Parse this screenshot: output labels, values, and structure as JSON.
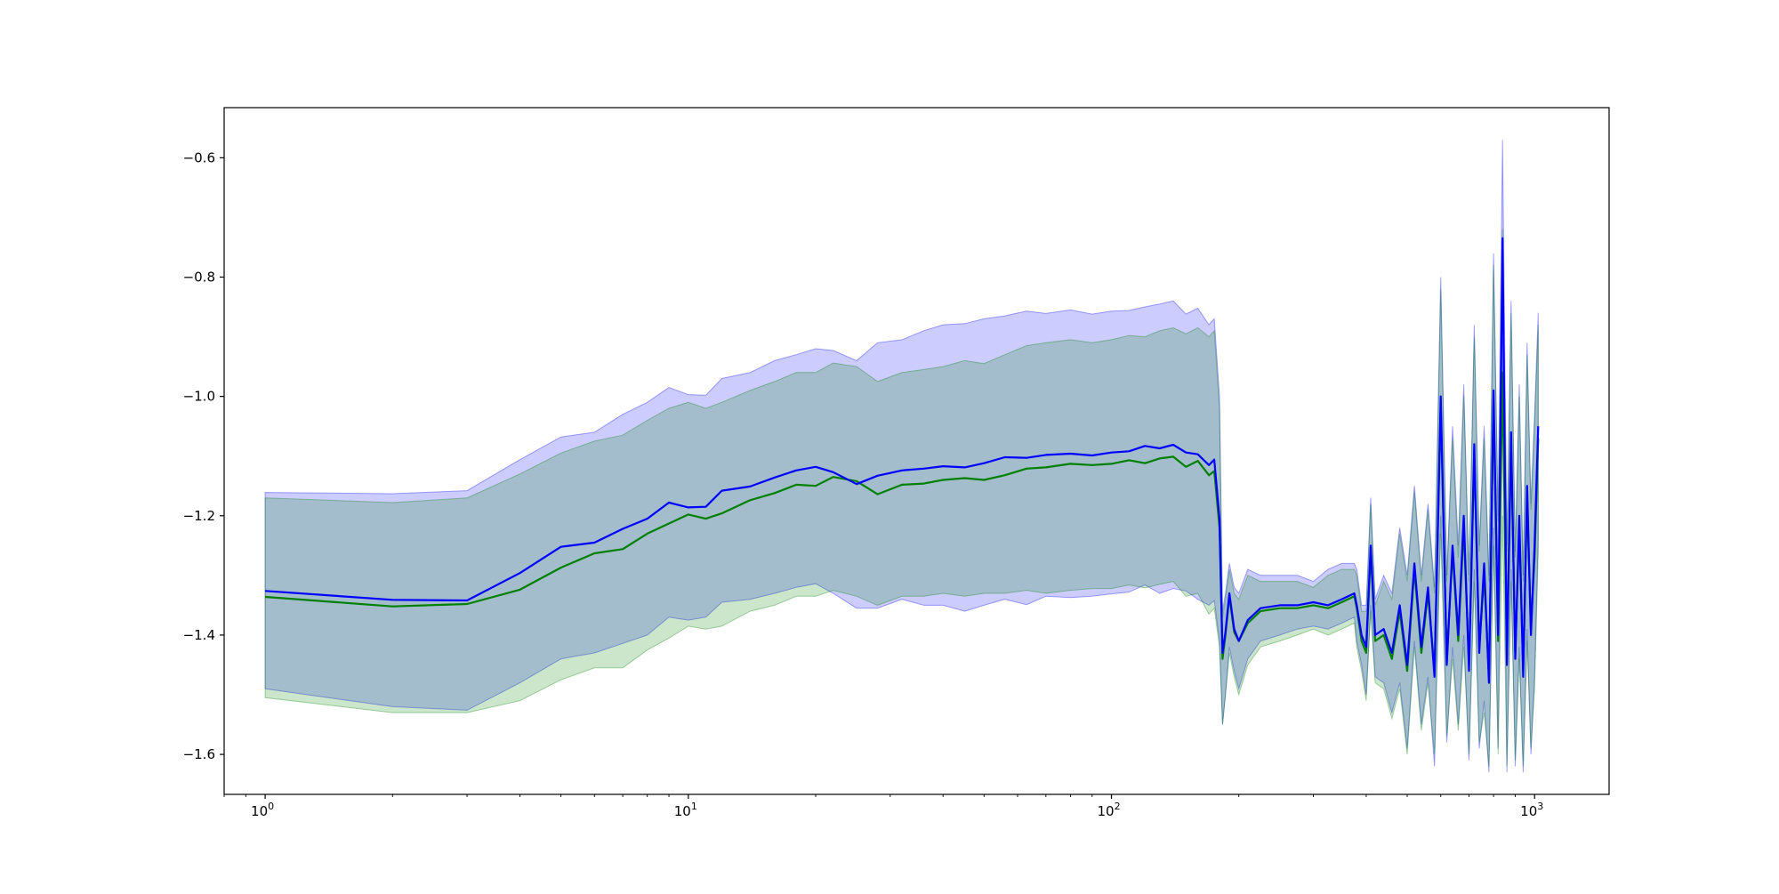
{
  "chart_data": {
    "type": "line",
    "title": "",
    "xlabel": "",
    "ylabel": "",
    "xscale": "log",
    "xlim": [
      0.8,
      1500
    ],
    "ylim": [
      -1.667,
      -0.516
    ],
    "grid": false,
    "legend": "none",
    "x_ticks": [
      {
        "value": 1,
        "base": "10",
        "exp": "0"
      },
      {
        "value": 10,
        "base": "10",
        "exp": "1"
      },
      {
        "value": 100,
        "base": "10",
        "exp": "2"
      },
      {
        "value": 1000,
        "base": "10",
        "exp": "3"
      }
    ],
    "y_ticks": [
      {
        "value": -0.6,
        "label": "−0.6"
      },
      {
        "value": -0.8,
        "label": "−0.8"
      },
      {
        "value": -1.0,
        "label": "−1.0"
      },
      {
        "value": -1.2,
        "label": "−1.2"
      },
      {
        "value": -1.4,
        "label": "−1.4"
      },
      {
        "value": -1.6,
        "label": "−1.6"
      }
    ],
    "series": [
      {
        "color": "#0000ff",
        "band_color": "#0000ff",
        "band_opacity": 0.2,
        "x": [
          1,
          2,
          3,
          4,
          5,
          6,
          7,
          8,
          9,
          10,
          11,
          12,
          14,
          16,
          18,
          20,
          22,
          25,
          28,
          32,
          36,
          40,
          45,
          50,
          56,
          63,
          70,
          80,
          90,
          100,
          110,
          120,
          130,
          140,
          150,
          160,
          170,
          175,
          180,
          183,
          186,
          190,
          195,
          200,
          210,
          225,
          250,
          275,
          300,
          325,
          350,
          375,
          380,
          390,
          400,
          410,
          420,
          440,
          460,
          480,
          500,
          520,
          540,
          560,
          580,
          600,
          620,
          640,
          660,
          680,
          700,
          720,
          740,
          760,
          780,
          800,
          820,
          840,
          860,
          880,
          900,
          920,
          940,
          960,
          980,
          1000,
          1020
        ],
        "mean": [
          -1.326,
          -1.341,
          -1.342,
          -1.296,
          -1.252,
          -1.245,
          -1.222,
          -1.205,
          -1.178,
          -1.186,
          -1.185,
          -1.158,
          -1.151,
          -1.136,
          -1.124,
          -1.118,
          -1.127,
          -1.147,
          -1.133,
          -1.124,
          -1.121,
          -1.117,
          -1.119,
          -1.112,
          -1.102,
          -1.103,
          -1.098,
          -1.096,
          -1.099,
          -1.094,
          -1.092,
          -1.083,
          -1.087,
          -1.081,
          -1.094,
          -1.097,
          -1.115,
          -1.106,
          -1.205,
          -1.43,
          -1.395,
          -1.33,
          -1.39,
          -1.41,
          -1.375,
          -1.355,
          -1.35,
          -1.35,
          -1.345,
          -1.35,
          -1.34,
          -1.33,
          -1.35,
          -1.4,
          -1.42,
          -1.25,
          -1.4,
          -1.39,
          -1.43,
          -1.35,
          -1.45,
          -1.28,
          -1.42,
          -1.32,
          -1.47,
          -1.0,
          -1.45,
          -1.25,
          -1.4,
          -1.2,
          -1.46,
          -1.08,
          -1.43,
          -1.28,
          -1.48,
          -0.99,
          -1.4,
          -0.735,
          -1.45,
          -1.06,
          -1.44,
          -1.2,
          -1.47,
          -1.15,
          -1.4,
          -1.25,
          -1.05
        ],
        "upper": [
          -1.161,
          -1.163,
          -1.158,
          -1.106,
          -1.068,
          -1.06,
          -1.03,
          -1.01,
          -0.985,
          -0.997,
          -0.998,
          -0.97,
          -0.96,
          -0.94,
          -0.93,
          -0.92,
          -0.923,
          -0.94,
          -0.91,
          -0.905,
          -0.89,
          -0.88,
          -0.878,
          -0.87,
          -0.865,
          -0.857,
          -0.861,
          -0.855,
          -0.862,
          -0.857,
          -0.856,
          -0.85,
          -0.845,
          -0.84,
          -0.862,
          -0.852,
          -0.88,
          -0.87,
          -1.0,
          -1.36,
          -1.33,
          -1.28,
          -1.32,
          -1.33,
          -1.29,
          -1.3,
          -1.3,
          -1.3,
          -1.31,
          -1.29,
          -1.28,
          -1.28,
          -1.29,
          -1.35,
          -1.35,
          -1.17,
          -1.34,
          -1.3,
          -1.33,
          -1.22,
          -1.3,
          -1.15,
          -1.3,
          -1.18,
          -1.32,
          -0.8,
          -1.3,
          -1.05,
          -1.25,
          -0.98,
          -1.3,
          -0.88,
          -1.25,
          -1.05,
          -1.3,
          -0.76,
          -1.2,
          -0.57,
          -1.25,
          -0.84,
          -1.26,
          -0.98,
          -1.3,
          -0.91,
          -1.18,
          -1.03,
          -0.86
        ],
        "lower": [
          -1.49,
          -1.52,
          -1.526,
          -1.48,
          -1.44,
          -1.43,
          -1.414,
          -1.4,
          -1.37,
          -1.375,
          -1.37,
          -1.345,
          -1.34,
          -1.33,
          -1.32,
          -1.314,
          -1.33,
          -1.355,
          -1.355,
          -1.34,
          -1.35,
          -1.35,
          -1.36,
          -1.35,
          -1.34,
          -1.349,
          -1.335,
          -1.337,
          -1.335,
          -1.331,
          -1.328,
          -1.316,
          -1.33,
          -1.322,
          -1.326,
          -1.34,
          -1.35,
          -1.342,
          -1.41,
          -1.55,
          -1.5,
          -1.42,
          -1.46,
          -1.49,
          -1.44,
          -1.41,
          -1.4,
          -1.39,
          -1.385,
          -1.39,
          -1.38,
          -1.37,
          -1.41,
          -1.45,
          -1.5,
          -1.35,
          -1.47,
          -1.48,
          -1.53,
          -1.48,
          -1.59,
          -1.41,
          -1.55,
          -1.47,
          -1.62,
          -1.2,
          -1.58,
          -1.42,
          -1.55,
          -1.4,
          -1.61,
          -1.29,
          -1.59,
          -1.51,
          -1.63,
          -1.22,
          -1.59,
          -0.9,
          -1.63,
          -1.29,
          -1.62,
          -1.42,
          -1.63,
          -1.39,
          -1.6,
          -1.47,
          -1.24
        ]
      },
      {
        "color": "#008000",
        "band_color": "#008000",
        "band_opacity": 0.2,
        "x": [
          1,
          2,
          3,
          4,
          5,
          6,
          7,
          8,
          9,
          10,
          11,
          12,
          14,
          16,
          18,
          20,
          22,
          25,
          28,
          32,
          36,
          40,
          45,
          50,
          56,
          63,
          70,
          80,
          90,
          100,
          110,
          120,
          130,
          140,
          150,
          160,
          170,
          175,
          180,
          183,
          186,
          190,
          195,
          200,
          210,
          225,
          250,
          275,
          300,
          325,
          350,
          375,
          380,
          390,
          400,
          410,
          420,
          440,
          460,
          480,
          500,
          520,
          540,
          560,
          580,
          600,
          620,
          640,
          660,
          680,
          700,
          720,
          740,
          760,
          780,
          800,
          820,
          840,
          860,
          880,
          900,
          920,
          940,
          960,
          980,
          1000,
          1020
        ],
        "mean": [
          -1.336,
          -1.352,
          -1.348,
          -1.324,
          -1.287,
          -1.263,
          -1.256,
          -1.23,
          -1.213,
          -1.198,
          -1.205,
          -1.196,
          -1.174,
          -1.162,
          -1.148,
          -1.15,
          -1.135,
          -1.142,
          -1.164,
          -1.148,
          -1.146,
          -1.14,
          -1.137,
          -1.14,
          -1.132,
          -1.121,
          -1.119,
          -1.113,
          -1.115,
          -1.113,
          -1.107,
          -1.112,
          -1.104,
          -1.101,
          -1.118,
          -1.108,
          -1.132,
          -1.125,
          -1.22,
          -1.44,
          -1.4,
          -1.335,
          -1.395,
          -1.41,
          -1.38,
          -1.36,
          -1.355,
          -1.355,
          -1.35,
          -1.355,
          -1.345,
          -1.335,
          -1.355,
          -1.41,
          -1.43,
          -1.26,
          -1.41,
          -1.4,
          -1.44,
          -1.36,
          -1.46,
          -1.29,
          -1.43,
          -1.33,
          -1.46,
          -1.02,
          -1.44,
          -1.26,
          -1.41,
          -1.22,
          -1.45,
          -1.1,
          -1.42,
          -1.3,
          -1.47,
          -1.01,
          -1.41,
          -0.96,
          -1.44,
          -1.08,
          -1.43,
          -1.22,
          -1.46,
          -1.17,
          -1.39,
          -1.27,
          -1.07
        ],
        "upper": [
          -1.17,
          -1.178,
          -1.17,
          -1.13,
          -1.095,
          -1.075,
          -1.065,
          -1.04,
          -1.02,
          -1.01,
          -1.02,
          -1.01,
          -0.99,
          -0.975,
          -0.96,
          -0.96,
          -0.944,
          -0.95,
          -0.975,
          -0.96,
          -0.955,
          -0.95,
          -0.94,
          -0.945,
          -0.93,
          -0.915,
          -0.91,
          -0.905,
          -0.91,
          -0.905,
          -0.898,
          -0.9,
          -0.89,
          -0.885,
          -0.895,
          -0.885,
          -0.9,
          -0.89,
          -1.02,
          -1.37,
          -1.34,
          -1.29,
          -1.33,
          -1.34,
          -1.3,
          -1.31,
          -1.31,
          -1.31,
          -1.32,
          -1.3,
          -1.29,
          -1.29,
          -1.3,
          -1.36,
          -1.36,
          -1.18,
          -1.35,
          -1.31,
          -1.34,
          -1.23,
          -1.31,
          -1.16,
          -1.31,
          -1.19,
          -1.33,
          -0.82,
          -1.31,
          -1.07,
          -1.27,
          -1.0,
          -1.31,
          -0.9,
          -1.26,
          -1.07,
          -1.31,
          -0.78,
          -1.21,
          -0.72,
          -1.26,
          -0.86,
          -1.27,
          -1.0,
          -1.31,
          -0.93,
          -1.19,
          -1.05,
          -0.88
        ],
        "lower": [
          -1.505,
          -1.53,
          -1.53,
          -1.51,
          -1.475,
          -1.455,
          -1.455,
          -1.425,
          -1.405,
          -1.385,
          -1.39,
          -1.385,
          -1.36,
          -1.35,
          -1.335,
          -1.335,
          -1.325,
          -1.335,
          -1.35,
          -1.335,
          -1.335,
          -1.33,
          -1.335,
          -1.33,
          -1.33,
          -1.325,
          -1.33,
          -1.325,
          -1.322,
          -1.322,
          -1.316,
          -1.321,
          -1.315,
          -1.31,
          -1.335,
          -1.33,
          -1.365,
          -1.355,
          -1.42,
          -1.55,
          -1.5,
          -1.43,
          -1.47,
          -1.5,
          -1.45,
          -1.42,
          -1.41,
          -1.4,
          -1.39,
          -1.4,
          -1.39,
          -1.38,
          -1.42,
          -1.46,
          -1.51,
          -1.36,
          -1.48,
          -1.49,
          -1.54,
          -1.49,
          -1.6,
          -1.42,
          -1.56,
          -1.48,
          -1.6,
          -1.23,
          -1.57,
          -1.44,
          -1.56,
          -1.42,
          -1.6,
          -1.31,
          -1.58,
          -1.53,
          -1.62,
          -1.25,
          -1.6,
          -1.2,
          -1.62,
          -1.31,
          -1.61,
          -1.44,
          -1.62,
          -1.41,
          -1.59,
          -1.49,
          -1.26
        ]
      }
    ]
  }
}
